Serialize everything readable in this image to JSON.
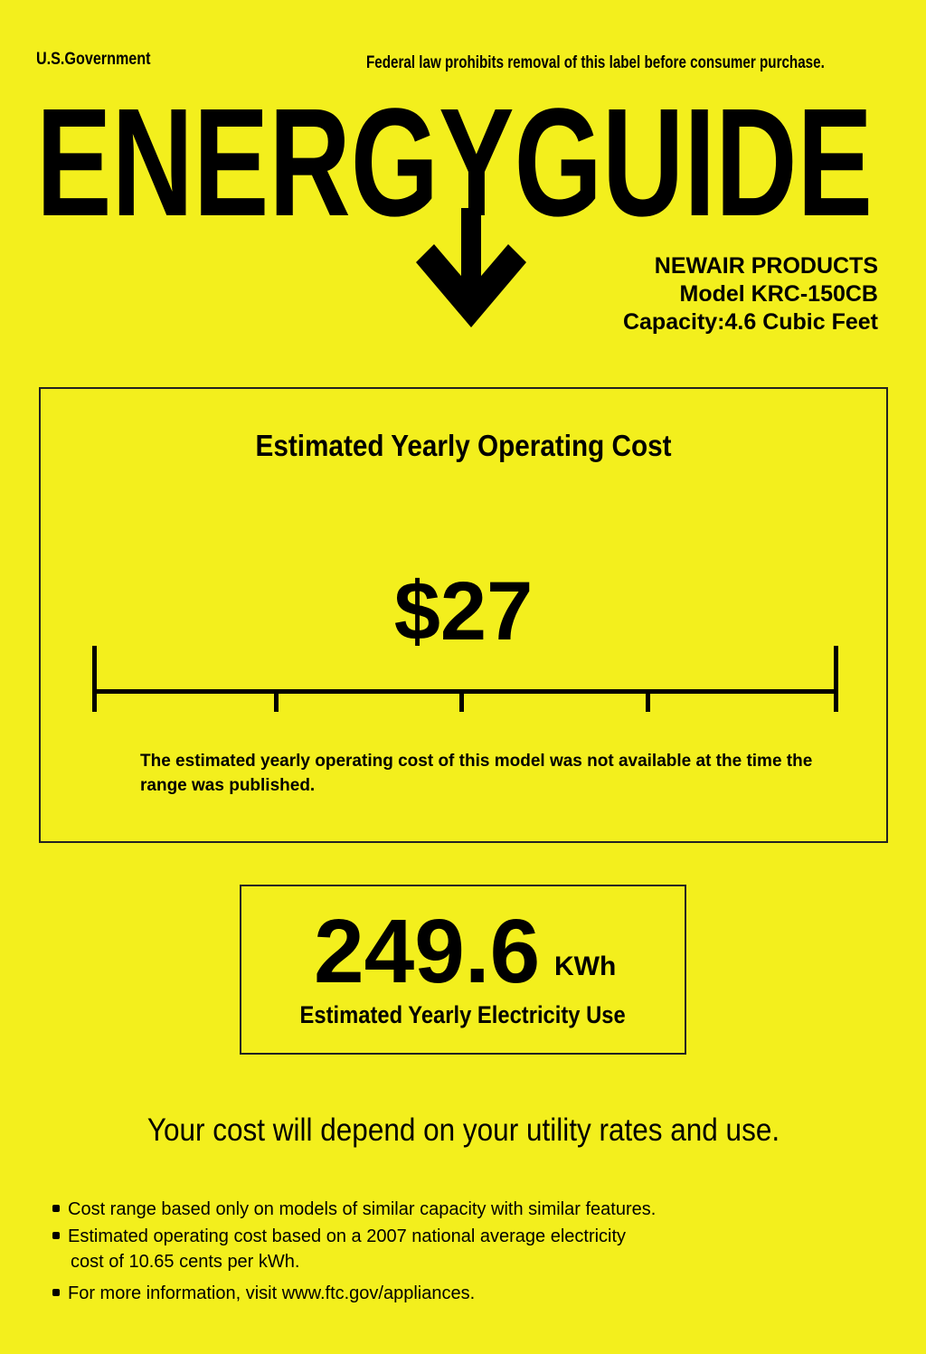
{
  "header": {
    "issuer": "U.S.Government",
    "legal_notice": "Federal law prohibits removal of this label before consumer purchase.",
    "logo_text": "ENERGYGUIDE"
  },
  "product": {
    "manufacturer": "NEWAIR PRODUCTS",
    "model": "Model KRC-150CB",
    "capacity": "Capacity:4.6 Cubic Feet"
  },
  "cost_section": {
    "title": "Estimated Yearly Operating Cost",
    "value": "$27",
    "note": "The estimated yearly operating cost of this model was not available at the time the range was published."
  },
  "electricity_section": {
    "value": "249.6",
    "unit": "KWh",
    "label": "Estimated Yearly Electricity Use"
  },
  "disclaimer": "Your cost will depend on your utility rates and use.",
  "bullets": [
    "Cost range based only on models of similar capacity with similar features.",
    "Estimated operating cost based on a 2007 national average electricity",
    "cost of 10.65 cents per kWh.",
    "For more information, visit www.ftc.gov/appliances."
  ],
  "colors": {
    "background": "#f3ef1d",
    "ink": "#000000"
  }
}
